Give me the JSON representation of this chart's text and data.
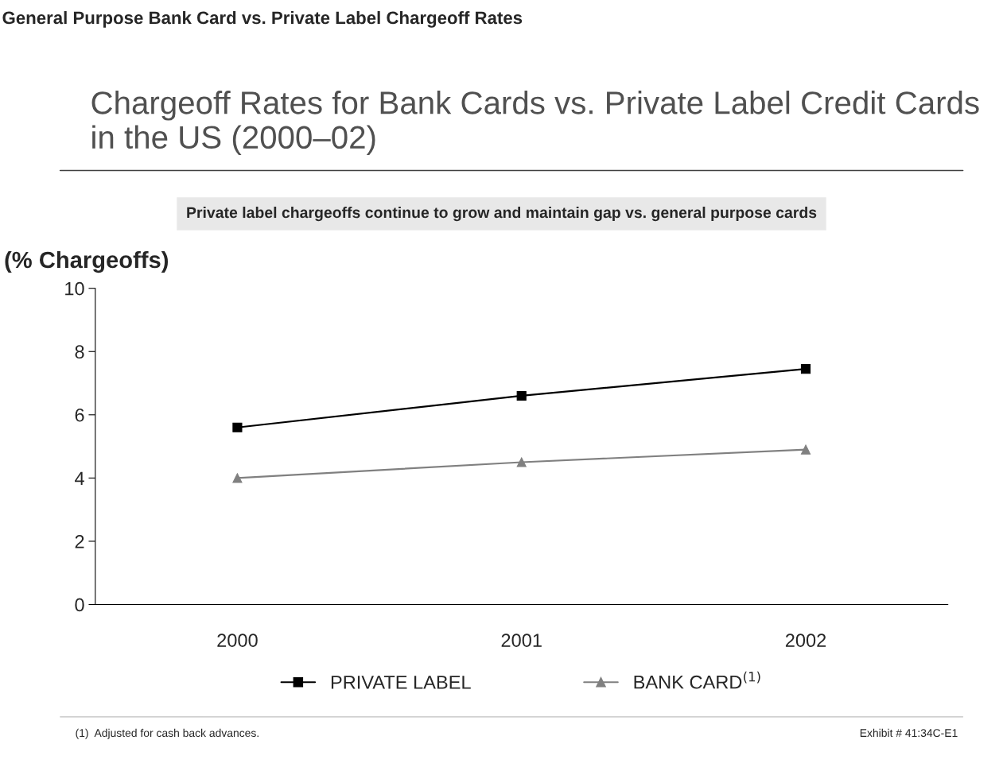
{
  "chart_data": {
    "type": "line",
    "title": "Chargeoff Rates for Bank Cards vs. Private Label Credit Cards in the US (2000–02)",
    "subtitle": "Private label chargeoffs continue to grow and maintain gap vs. general purpose cards",
    "ylabel": "(% Chargeoffs)",
    "annotations": [
      "General Purpose Bank Card vs. Private Label Chargeoff Rates",
      "(1)  Adjusted for cash back advances.",
      "Exhibit # 41:34C-E1"
    ],
    "categories": [
      "2000",
      "2001",
      "2002"
    ],
    "series": [
      {
        "name": "PRIVATE LABEL",
        "color": "#000000",
        "marker": "square",
        "values": [
          5.6,
          6.6,
          7.45
        ]
      },
      {
        "name": "BANK CARD$^{(1)}$",
        "color": "#808080",
        "marker": "triangle",
        "values": [
          4.0,
          4.5,
          4.9
        ]
      }
    ],
    "ylim": [
      0,
      10
    ],
    "yticks": [
      0,
      2,
      4,
      6,
      8,
      10
    ],
    "grid": false,
    "legend": "bottom",
    "line_style": "solid"
  }
}
